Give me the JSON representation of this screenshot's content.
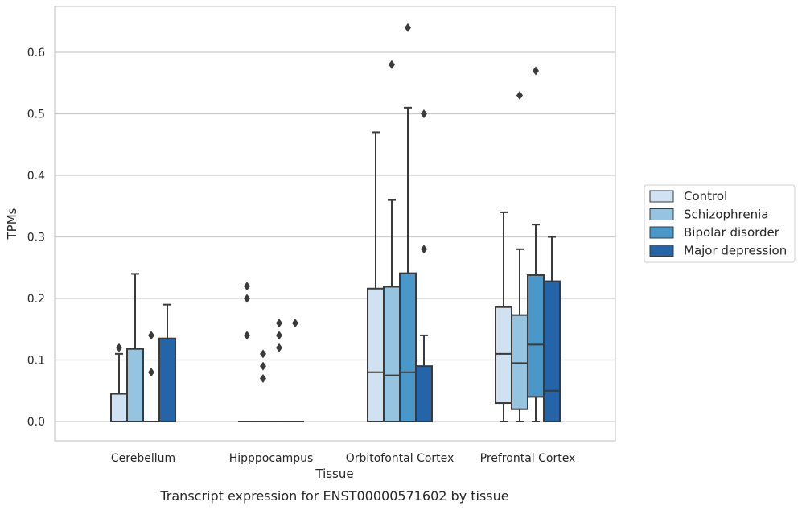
{
  "chart_data": {
    "type": "box",
    "title": "",
    "caption": "Transcript expression for ENST00000571602 by tissue",
    "xlabel": "Tissue",
    "ylabel": "TPMs",
    "ylim": [
      -0.03,
      0.67
    ],
    "yticks": [
      "0.0",
      "0.1",
      "0.2",
      "0.3",
      "0.4",
      "0.5",
      "0.6"
    ],
    "grid": "horizontal",
    "legend_position": "right",
    "categories": [
      "Cerebellum",
      "Hipppocampus",
      "Orbitofontal Cortex",
      "Prefrontal Cortex"
    ],
    "series": [
      {
        "name": "Control",
        "color": "#d0e1f1",
        "boxes": [
          {
            "q1": 0.0,
            "median": 0.0,
            "q3": 0.045,
            "whisker_low": 0.0,
            "whisker_high": 0.11,
            "outliers": [
              0.12
            ]
          },
          {
            "q1": 0.0,
            "median": 0.0,
            "q3": 0.0,
            "whisker_low": 0.0,
            "whisker_high": 0.0,
            "outliers": [
              0.14,
              0.2,
              0.22
            ]
          },
          {
            "q1": 0.0,
            "median": 0.08,
            "q3": 0.216,
            "whisker_low": 0.0,
            "whisker_high": 0.47,
            "outliers": []
          },
          {
            "q1": 0.03,
            "median": 0.11,
            "q3": 0.186,
            "whisker_low": 0.0,
            "whisker_high": 0.34,
            "outliers": []
          }
        ]
      },
      {
        "name": "Schizophrenia",
        "color": "#94c4df",
        "boxes": [
          {
            "q1": 0.0,
            "median": 0.0,
            "q3": 0.118,
            "whisker_low": 0.0,
            "whisker_high": 0.24,
            "outliers": []
          },
          {
            "q1": 0.0,
            "median": 0.0,
            "q3": 0.0,
            "whisker_low": 0.0,
            "whisker_high": 0.0,
            "outliers": [
              0.07,
              0.09,
              0.11
            ]
          },
          {
            "q1": 0.0,
            "median": 0.075,
            "q3": 0.219,
            "whisker_low": 0.0,
            "whisker_high": 0.36,
            "outliers": [
              0.58
            ]
          },
          {
            "q1": 0.02,
            "median": 0.095,
            "q3": 0.173,
            "whisker_low": 0.0,
            "whisker_high": 0.28,
            "outliers": [
              0.53
            ]
          }
        ]
      },
      {
        "name": "Bipolar disorder",
        "color": "#4a98c9",
        "boxes": [
          {
            "q1": 0.0,
            "median": 0.0,
            "q3": 0.0,
            "whisker_low": 0.0,
            "whisker_high": 0.0,
            "outliers": [
              0.08,
              0.14
            ]
          },
          {
            "q1": 0.0,
            "median": 0.0,
            "q3": 0.0,
            "whisker_low": 0.0,
            "whisker_high": 0.0,
            "outliers": [
              0.12,
              0.14,
              0.16
            ]
          },
          {
            "q1": 0.0,
            "median": 0.08,
            "q3": 0.241,
            "whisker_low": 0.0,
            "whisker_high": 0.51,
            "outliers": [
              0.64
            ]
          },
          {
            "q1": 0.04,
            "median": 0.125,
            "q3": 0.238,
            "whisker_low": 0.0,
            "whisker_high": 0.32,
            "outliers": [
              0.57
            ]
          }
        ]
      },
      {
        "name": "Major depression",
        "color": "#2464a9",
        "boxes": [
          {
            "q1": 0.0,
            "median": 0.0,
            "q3": 0.135,
            "whisker_low": 0.0,
            "whisker_high": 0.19,
            "outliers": []
          },
          {
            "q1": 0.0,
            "median": 0.0,
            "q3": 0.0,
            "whisker_low": 0.0,
            "whisker_high": 0.0,
            "outliers": [
              0.16
            ]
          },
          {
            "q1": 0.0,
            "median": 0.0,
            "q3": 0.09,
            "whisker_low": 0.0,
            "whisker_high": 0.14,
            "outliers": [
              0.28,
              0.5
            ]
          },
          {
            "q1": 0.0,
            "median": 0.05,
            "q3": 0.228,
            "whisker_low": 0.0,
            "whisker_high": 0.3,
            "outliers": []
          }
        ]
      }
    ]
  }
}
